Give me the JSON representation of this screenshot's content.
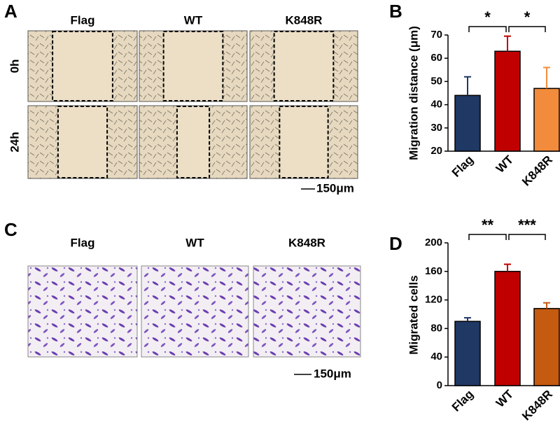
{
  "panel_labels": [
    "A",
    "B",
    "C",
    "D"
  ],
  "wound_healing": {
    "columns": [
      "Flag",
      "WT",
      "K848R"
    ],
    "rows": [
      "0h",
      "24h"
    ],
    "scale_bar": "150μm"
  },
  "transwell": {
    "columns": [
      "Flag",
      "WT",
      "K848R"
    ],
    "scale_bar": "150μm"
  },
  "chart_data": [
    {
      "type": "bar",
      "ylabel": "Migration distance (μm)",
      "categories": [
        "Flag",
        "WT",
        "K848R"
      ],
      "values": [
        44,
        63,
        47
      ],
      "errors": [
        8,
        6.5,
        9
      ],
      "colors": [
        "#1f3864",
        "#c00000",
        "#f28c3c"
      ],
      "ylim": [
        20,
        70
      ],
      "yticks": [
        20,
        30,
        40,
        50,
        60,
        70
      ],
      "significance": [
        "*",
        "*"
      ]
    },
    {
      "type": "bar",
      "ylabel": "Migrated cells",
      "categories": [
        "Flag",
        "WT",
        "K848R"
      ],
      "values": [
        90,
        160,
        108
      ],
      "errors": [
        5,
        10,
        8
      ],
      "colors": [
        "#1f3864",
        "#c00000",
        "#c55a11"
      ],
      "ylim": [
        0,
        200
      ],
      "yticks": [
        0,
        40,
        80,
        120,
        160,
        200
      ],
      "significance": [
        "**",
        "***"
      ]
    }
  ]
}
